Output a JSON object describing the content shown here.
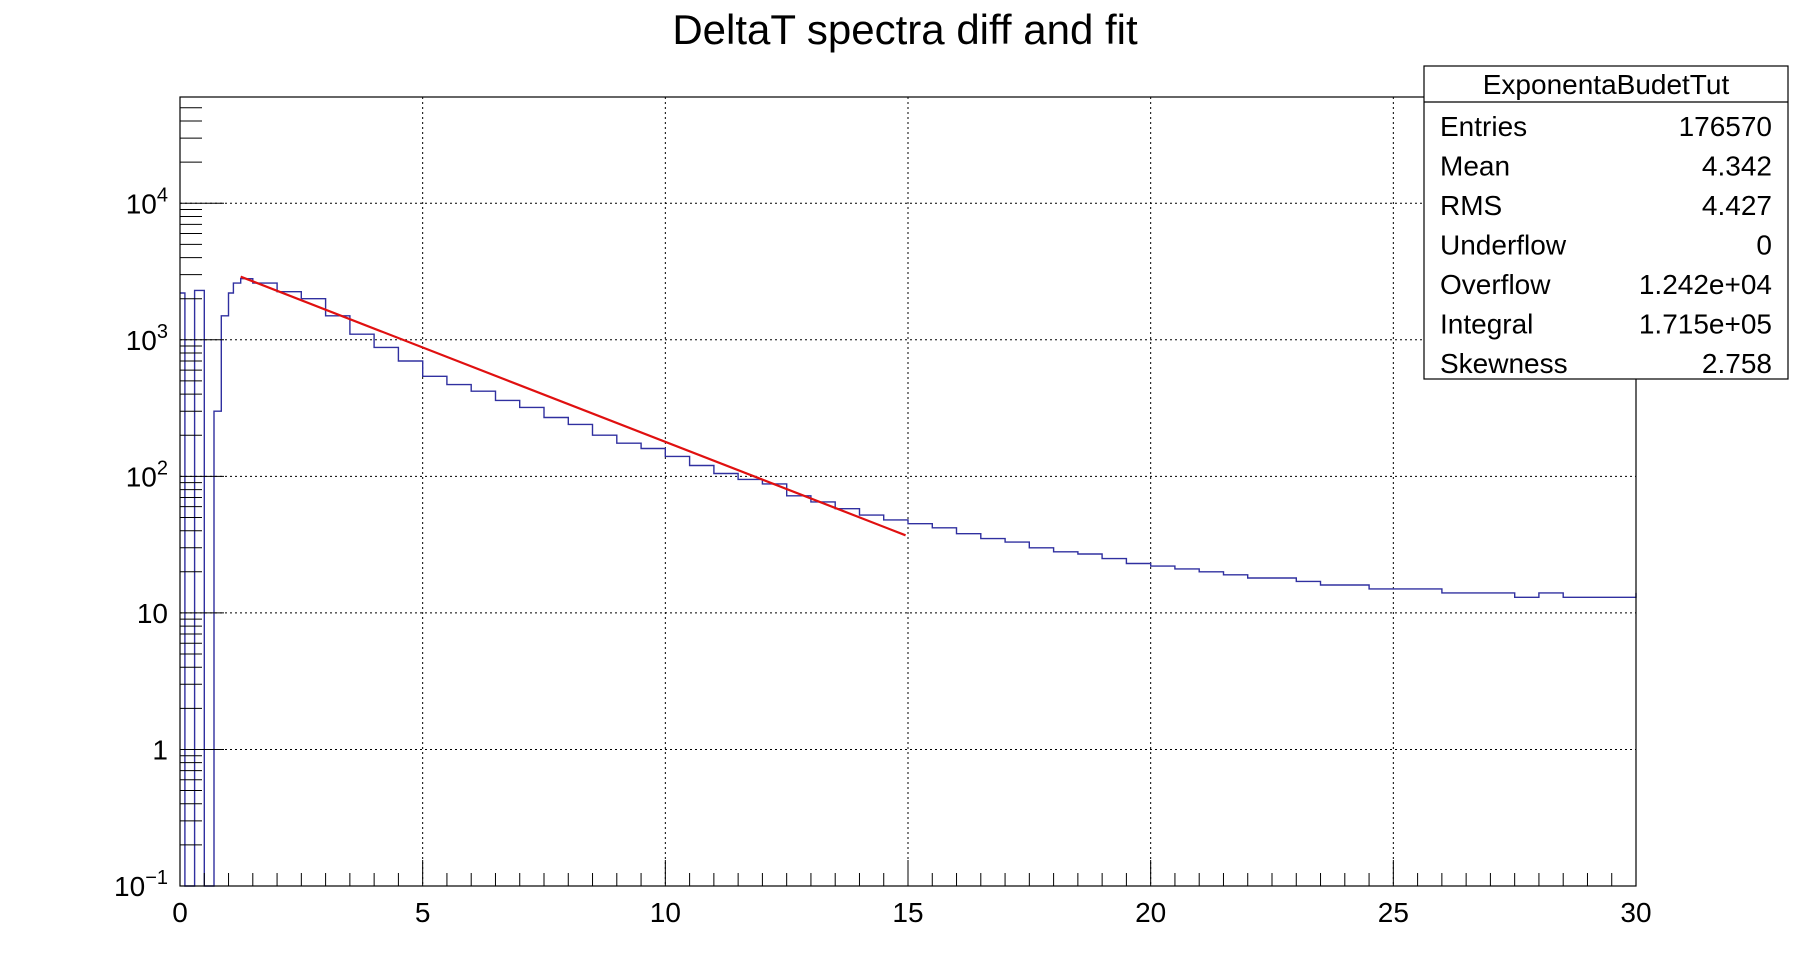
{
  "chart_data": {
    "type": "histogram",
    "title": "DeltaT spectra diff and fit",
    "xlabel": "",
    "ylabel": "",
    "xlim": [
      0,
      30
    ],
    "ylim": [
      0.1,
      60000
    ],
    "y_scale": "log",
    "grid": true,
    "x_ticks": [
      {
        "value": 0,
        "label": "0"
      },
      {
        "value": 5,
        "label": "5"
      },
      {
        "value": 10,
        "label": "10"
      },
      {
        "value": 15,
        "label": "15"
      },
      {
        "value": 20,
        "label": "20"
      },
      {
        "value": 25,
        "label": "25"
      },
      {
        "value": 30,
        "label": "30"
      }
    ],
    "y_ticks": [
      {
        "value": 0.1,
        "base": "10",
        "exp": "−1"
      },
      {
        "value": 1,
        "base": "1",
        "exp": ""
      },
      {
        "value": 10,
        "base": "10",
        "exp": ""
      },
      {
        "value": 100,
        "base": "10",
        "exp": "2"
      },
      {
        "value": 1000,
        "base": "10",
        "exp": "3"
      },
      {
        "value": 10000,
        "base": "10",
        "exp": "4"
      }
    ],
    "histogram": {
      "color": "#3030a0",
      "points": [
        [
          0.0,
          2200
        ],
        [
          0.1,
          0.05
        ],
        [
          0.3,
          2300
        ],
        [
          0.5,
          0.05
        ],
        [
          0.7,
          300
        ],
        [
          0.85,
          1500
        ],
        [
          1.0,
          2200
        ],
        [
          1.1,
          2600
        ],
        [
          1.25,
          2800
        ],
        [
          1.5,
          2600
        ],
        [
          2.0,
          2250
        ],
        [
          2.5,
          2000
        ],
        [
          3.0,
          1500
        ],
        [
          3.5,
          1100
        ],
        [
          4.0,
          880
        ],
        [
          4.5,
          700
        ],
        [
          5.0,
          540
        ],
        [
          5.5,
          470
        ],
        [
          6.0,
          420
        ],
        [
          6.5,
          360
        ],
        [
          7.0,
          320
        ],
        [
          7.5,
          270
        ],
        [
          8.0,
          240
        ],
        [
          8.5,
          200
        ],
        [
          9.0,
          175
        ],
        [
          9.5,
          160
        ],
        [
          10.0,
          140
        ],
        [
          10.5,
          120
        ],
        [
          11.0,
          105
        ],
        [
          11.5,
          95
        ],
        [
          12.0,
          88
        ],
        [
          12.5,
          72
        ],
        [
          13.0,
          65
        ],
        [
          13.5,
          58
        ],
        [
          14.0,
          52
        ],
        [
          14.5,
          48
        ],
        [
          15.0,
          45
        ],
        [
          15.5,
          42
        ],
        [
          16.0,
          38
        ],
        [
          16.5,
          35
        ],
        [
          17.0,
          33
        ],
        [
          17.5,
          30
        ],
        [
          18.0,
          28
        ],
        [
          18.5,
          27
        ],
        [
          19.0,
          25
        ],
        [
          19.5,
          23
        ],
        [
          20.0,
          22
        ],
        [
          20.5,
          21
        ],
        [
          21.0,
          20
        ],
        [
          21.5,
          19
        ],
        [
          22.0,
          18
        ],
        [
          22.5,
          18
        ],
        [
          23.0,
          17
        ],
        [
          23.5,
          16
        ],
        [
          24.0,
          16
        ],
        [
          24.5,
          15
        ],
        [
          25.0,
          15
        ],
        [
          25.5,
          15
        ],
        [
          26.0,
          14
        ],
        [
          26.5,
          14
        ],
        [
          27.0,
          14
        ],
        [
          27.5,
          13
        ],
        [
          28.0,
          14
        ],
        [
          28.5,
          13
        ],
        [
          29.0,
          13
        ],
        [
          29.5,
          13
        ],
        [
          30.0,
          14
        ]
      ]
    },
    "fit": {
      "color": "#e01010",
      "x_start": 1.25,
      "x_end": 14.95,
      "y_start": 2900,
      "y_end": 37
    },
    "stats_box": {
      "title": "ExponentaBudetTut",
      "rows": [
        {
          "label": "Entries",
          "value": "176570"
        },
        {
          "label": "Mean",
          "value": "4.342"
        },
        {
          "label": "RMS",
          "value": "4.427"
        },
        {
          "label": "Underflow",
          "value": "0"
        },
        {
          "label": "Overflow",
          "value": "1.242e+04"
        },
        {
          "label": "Integral",
          "value": "1.715e+05"
        },
        {
          "label": "Skewness",
          "value": "2.758"
        }
      ]
    }
  }
}
